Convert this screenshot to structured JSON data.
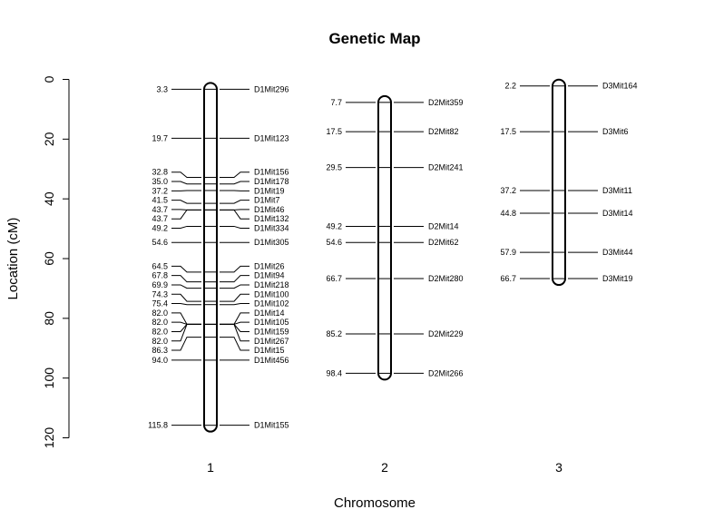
{
  "chart_data": {
    "type": "genetic_map",
    "title": "Genetic Map",
    "xlabel": "Chromosome",
    "ylabel": "Location (cM)",
    "ylim": [
      0,
      120
    ],
    "yticks": [
      0,
      20,
      40,
      60,
      80,
      100,
      120
    ],
    "y_reversed": true,
    "grid": false,
    "chromosomes": [
      {
        "name": "1",
        "start": 3.3,
        "end": 115.8,
        "markers": [
          {
            "name": "D1Mit296",
            "pos": 3.3,
            "pos_label": "3.3"
          },
          {
            "name": "D1Mit123",
            "pos": 19.7,
            "pos_label": "19.7"
          },
          {
            "name": "D1Mit156",
            "pos": 32.8,
            "pos_label": "32.8"
          },
          {
            "name": "D1Mit178",
            "pos": 35.0,
            "pos_label": "35.0"
          },
          {
            "name": "D1Mit19",
            "pos": 37.2,
            "pos_label": "37.2"
          },
          {
            "name": "D1Mit7",
            "pos": 41.5,
            "pos_label": "41.5"
          },
          {
            "name": "D1Mit46",
            "pos": 43.7,
            "pos_label": "43.7"
          },
          {
            "name": "D1Mit132",
            "pos": 43.7,
            "pos_label": "43.7"
          },
          {
            "name": "D1Mit334",
            "pos": 49.2,
            "pos_label": "49.2"
          },
          {
            "name": "D1Mit305",
            "pos": 54.6,
            "pos_label": "54.6"
          },
          {
            "name": "D1Mit26",
            "pos": 64.5,
            "pos_label": "64.5"
          },
          {
            "name": "D1Mit94",
            "pos": 67.8,
            "pos_label": "67.8"
          },
          {
            "name": "D1Mit218",
            "pos": 69.9,
            "pos_label": "69.9"
          },
          {
            "name": "D1Mit100",
            "pos": 74.3,
            "pos_label": "74.3"
          },
          {
            "name": "D1Mit102",
            "pos": 75.4,
            "pos_label": "75.4"
          },
          {
            "name": "D1Mit14",
            "pos": 82.0,
            "pos_label": "82.0"
          },
          {
            "name": "D1Mit105",
            "pos": 82.0,
            "pos_label": "82.0"
          },
          {
            "name": "D1Mit159",
            "pos": 82.0,
            "pos_label": "82.0"
          },
          {
            "name": "D1Mit267",
            "pos": 82.0,
            "pos_label": "82.0"
          },
          {
            "name": "D1Mit15",
            "pos": 86.3,
            "pos_label": "86.3"
          },
          {
            "name": "D1Mit456",
            "pos": 94.0,
            "pos_label": "94.0"
          },
          {
            "name": "D1Mit155",
            "pos": 115.8,
            "pos_label": "115.8"
          }
        ]
      },
      {
        "name": "2",
        "start": 7.7,
        "end": 98.4,
        "markers": [
          {
            "name": "D2Mit359",
            "pos": 7.7,
            "pos_label": "7.7"
          },
          {
            "name": "D2Mit82",
            "pos": 17.5,
            "pos_label": "17.5"
          },
          {
            "name": "D2Mit241",
            "pos": 29.5,
            "pos_label": "29.5"
          },
          {
            "name": "D2Mit14",
            "pos": 49.2,
            "pos_label": "49.2"
          },
          {
            "name": "D2Mit62",
            "pos": 54.6,
            "pos_label": "54.6"
          },
          {
            "name": "D2Mit280",
            "pos": 66.7,
            "pos_label": "66.7"
          },
          {
            "name": "D2Mit229",
            "pos": 85.2,
            "pos_label": "85.2"
          },
          {
            "name": "D2Mit266",
            "pos": 98.4,
            "pos_label": "98.4"
          }
        ]
      },
      {
        "name": "3",
        "start": 2.2,
        "end": 66.7,
        "markers": [
          {
            "name": "D3Mit164",
            "pos": 2.2,
            "pos_label": "2.2"
          },
          {
            "name": "D3Mit6",
            "pos": 17.5,
            "pos_label": "17.5"
          },
          {
            "name": "D3Mit11",
            "pos": 37.2,
            "pos_label": "37.2"
          },
          {
            "name": "D3Mit14",
            "pos": 44.8,
            "pos_label": "44.8"
          },
          {
            "name": "D3Mit44",
            "pos": 57.9,
            "pos_label": "57.9"
          },
          {
            "name": "D3Mit19",
            "pos": 66.7,
            "pos_label": "66.7"
          }
        ]
      }
    ]
  }
}
